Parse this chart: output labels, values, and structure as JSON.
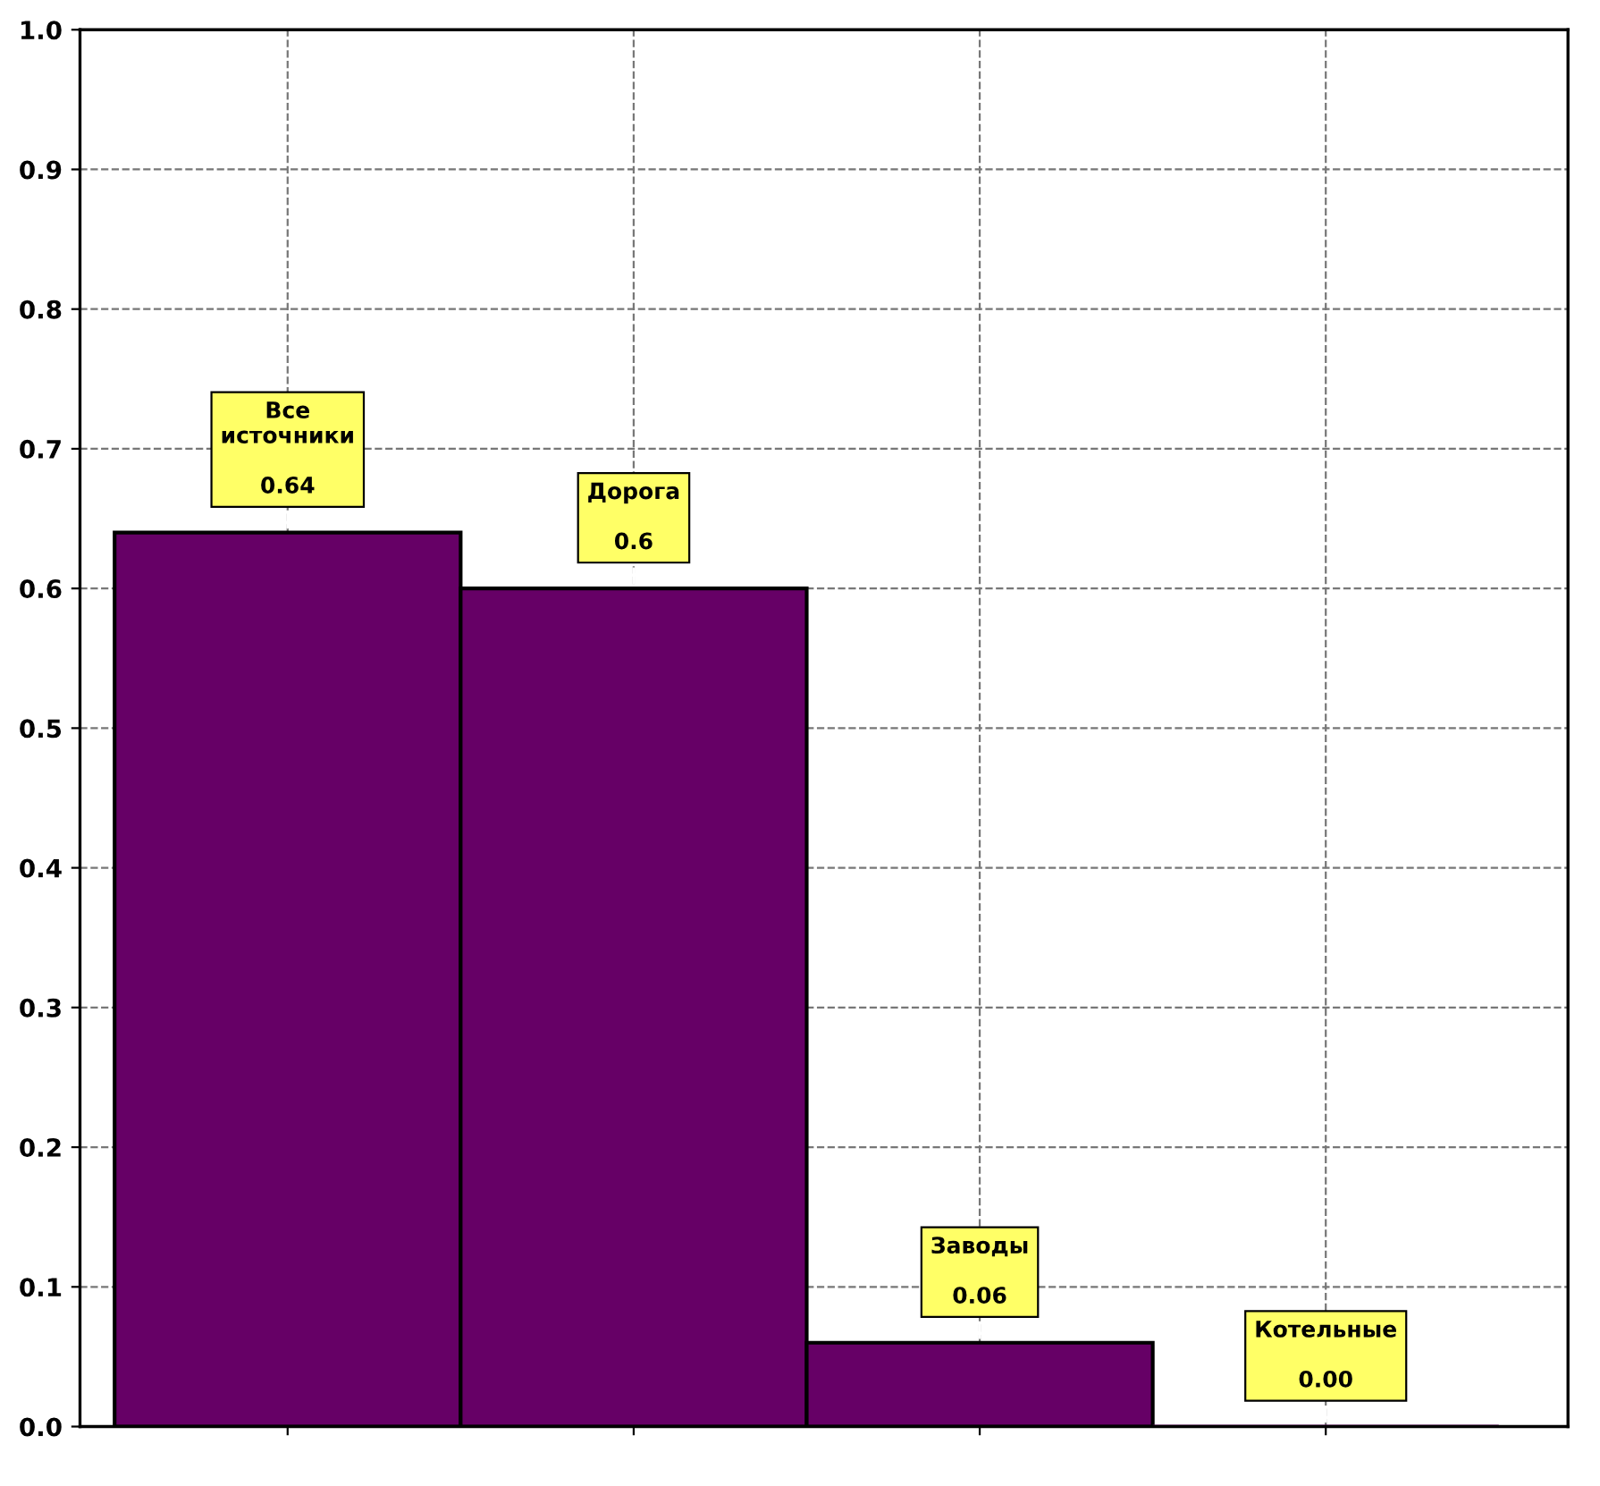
{
  "chart_data": {
    "type": "bar",
    "categories": [
      "Все\nисточники",
      "Дорога",
      "Заводы",
      "Котельные"
    ],
    "values": [
      0.64,
      0.6,
      0.06,
      0.0
    ],
    "value_labels": [
      "0.64",
      "0.6",
      "0.06",
      "0.00"
    ],
    "color": "#660066",
    "ylim": [
      0,
      1
    ],
    "yticks": [
      {
        "value": 0,
        "label": "0.0"
      },
      {
        "value": 0.1,
        "label": "0.1"
      },
      {
        "value": 0.2,
        "label": "0.2"
      },
      {
        "value": 0.3,
        "label": "0.3"
      },
      {
        "value": 0.4,
        "label": "0.4"
      },
      {
        "value": 0.5,
        "label": "0.5"
      },
      {
        "value": 0.6,
        "label": "0.6"
      },
      {
        "value": 0.7,
        "label": "0.7"
      },
      {
        "value": 0.8,
        "label": "0.8"
      },
      {
        "value": 0.9,
        "label": "0.9"
      },
      {
        "value": 1,
        "label": "1.0"
      }
    ],
    "grid": true,
    "tick_labels": "y"
  }
}
